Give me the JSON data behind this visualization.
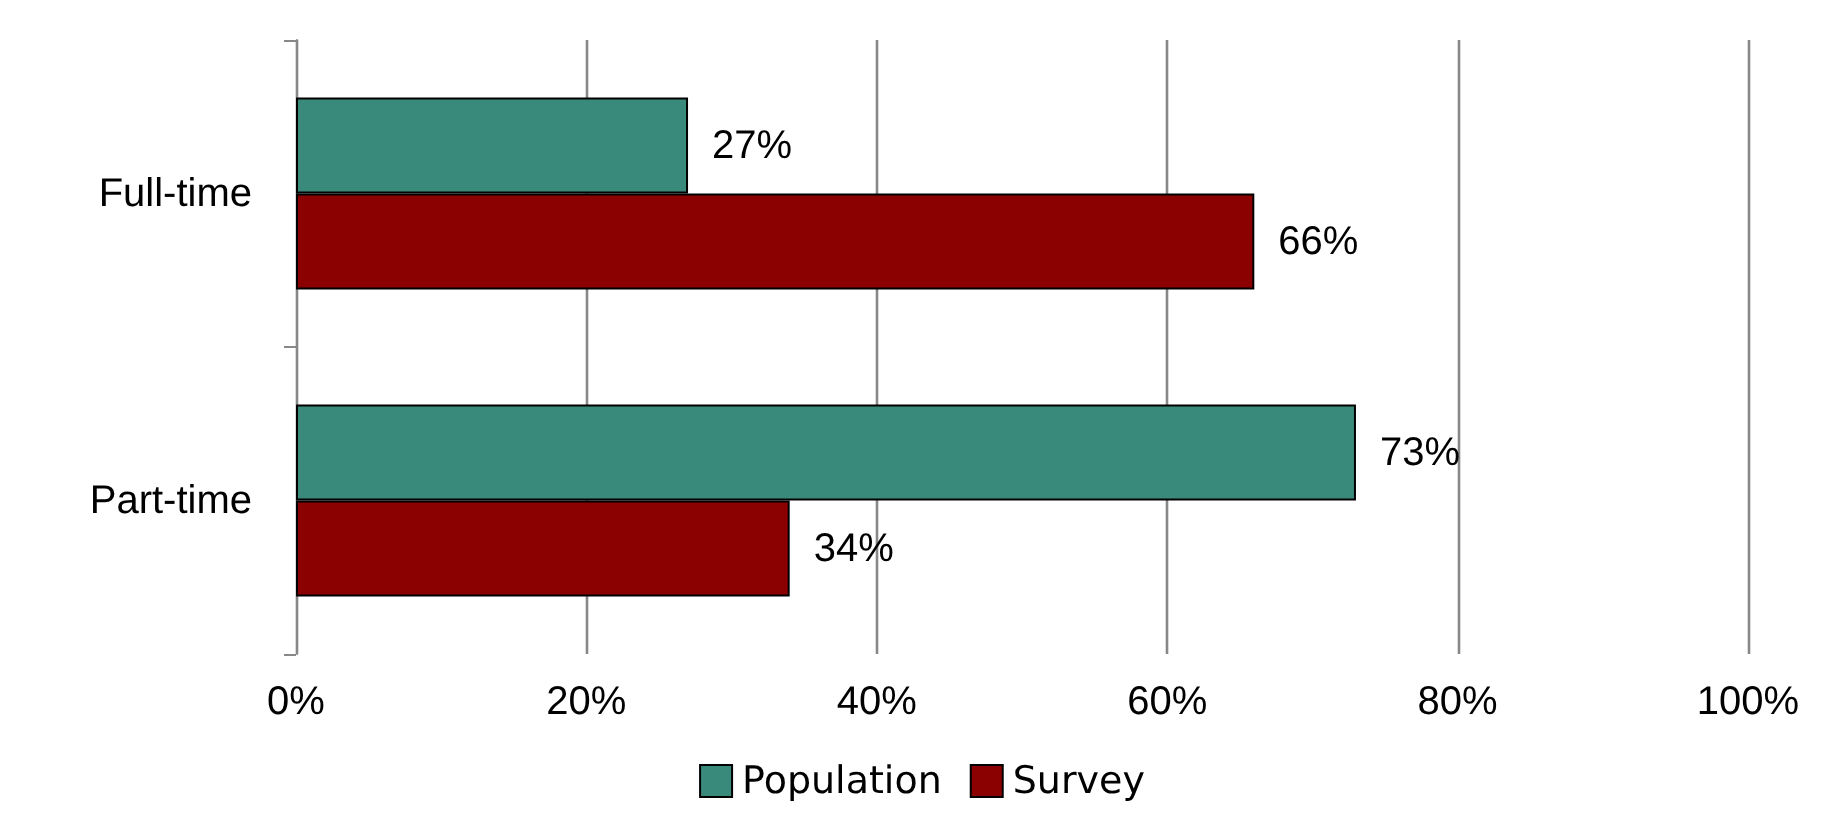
{
  "chart_data": {
    "type": "bar",
    "orientation": "horizontal",
    "categories": [
      "Full-time",
      "Part-time"
    ],
    "series": [
      {
        "name": "Population",
        "color": "#3a8a7c",
        "values": [
          27,
          73
        ],
        "value_labels": [
          "27%",
          "73%"
        ]
      },
      {
        "name": "Survey",
        "color": "#8b0000",
        "values": [
          66,
          34
        ],
        "value_labels": [
          "66%",
          "34%"
        ]
      }
    ],
    "xlim": [
      0,
      100
    ],
    "xticks": [
      {
        "value": 0,
        "label": "0%"
      },
      {
        "value": 20,
        "label": "20%"
      },
      {
        "value": 40,
        "label": "40%"
      },
      {
        "value": 60,
        "label": "60%"
      },
      {
        "value": 80,
        "label": "80%"
      },
      {
        "value": 100,
        "label": "100%"
      }
    ],
    "grid": "x",
    "legend": "bottom"
  }
}
